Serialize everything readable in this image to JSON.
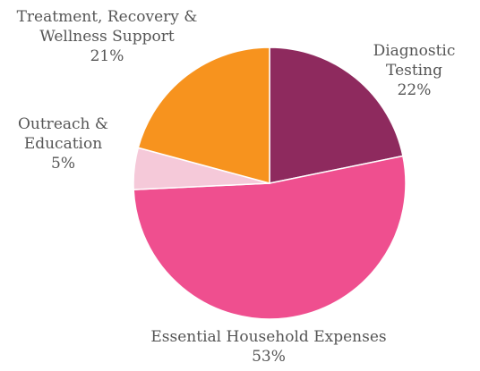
{
  "chart_data": {
    "type": "pie",
    "categories": [
      "Diagnostic Testing",
      "Essential Household Expenses",
      "Outreach & Education",
      "Treatment, Recovery & Wellness Support"
    ],
    "values": [
      22,
      53,
      5,
      21
    ],
    "value_labels": [
      "22%",
      "53%",
      "5%",
      "21%"
    ],
    "colors": [
      "#8e2a5e",
      "#ef4f8f",
      "#f5c9d9",
      "#f7931e"
    ]
  }
}
